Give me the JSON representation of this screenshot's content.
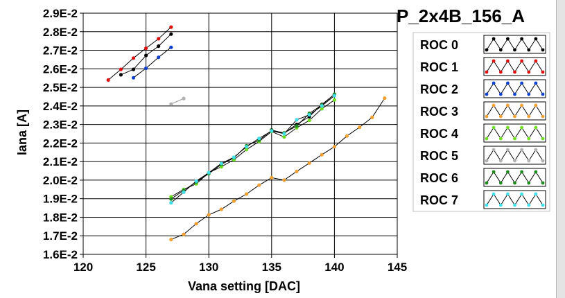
{
  "chart_data": {
    "type": "line",
    "title": "P_2x4B_156_A",
    "xlabel": "Vana setting [DAC]",
    "ylabel": "Iana [A]",
    "xlim": [
      120,
      145
    ],
    "ylim": [
      0.016,
      0.029
    ],
    "xticks": [
      120,
      125,
      130,
      135,
      140,
      145
    ],
    "xtick_labels": [
      "120",
      "125",
      "130",
      "135",
      "140",
      "145"
    ],
    "yticks": [
      0.016,
      0.017,
      0.018,
      0.019,
      0.02,
      0.021,
      0.022,
      0.023,
      0.024,
      0.025,
      0.026,
      0.027,
      0.028,
      0.029
    ],
    "ytick_labels": [
      "1.6E-2",
      "1.7E-2",
      "1.8E-2",
      "1.9E-2",
      "2.0E-2",
      "2.1E-2",
      "2.2E-2",
      "2.3E-2",
      "2.4E-2",
      "2.5E-2",
      "2.6E-2",
      "2.7E-2",
      "2.8E-2",
      "2.9E-2"
    ],
    "grid": true,
    "legend_position": "right",
    "series": [
      {
        "name": "ROC 0",
        "color": "#000000",
        "x": [
          123,
          124,
          125,
          126,
          127,
          135,
          136,
          137,
          138,
          139,
          140
        ],
        "y": [
          0.02568,
          0.02597,
          0.02672,
          0.02722,
          0.02787,
          0.0227,
          0.02253,
          0.023,
          0.02342,
          0.02408,
          0.02462
        ]
      },
      {
        "name": "ROC 1",
        "color": "#e01010",
        "x": [
          122,
          123,
          124,
          125,
          126,
          127
        ],
        "y": [
          0.0254,
          0.02597,
          0.02658,
          0.02711,
          0.02762,
          0.02825
        ]
      },
      {
        "name": "ROC 2",
        "color": "#1040d0",
        "x": [
          124,
          125,
          126,
          127
        ],
        "y": [
          0.02552,
          0.02603,
          0.02662,
          0.02716
        ]
      },
      {
        "name": "ROC 3",
        "color": "#f0a030",
        "x": [
          127,
          128,
          129,
          130,
          131,
          132,
          133,
          134,
          135,
          136,
          137,
          138,
          139,
          140,
          141,
          142,
          143,
          144
        ],
        "y": [
          0.0168,
          0.01708,
          0.01765,
          0.01813,
          0.01843,
          0.01887,
          0.01925,
          0.01973,
          0.02013,
          0.02,
          0.02047,
          0.02092,
          0.02137,
          0.0218,
          0.02238,
          0.02285,
          0.02338,
          0.02442
        ]
      },
      {
        "name": "ROC 4",
        "color": "#70dd20",
        "x": [
          127,
          128,
          129,
          130,
          131,
          132,
          133,
          134,
          135,
          136,
          137,
          138,
          139,
          140
        ],
        "y": [
          0.0191,
          0.0195,
          0.0198,
          0.0204,
          0.02072,
          0.0211,
          0.02165,
          0.02208,
          0.02262,
          0.02233,
          0.02282,
          0.02322,
          0.02385,
          0.02432
        ]
      },
      {
        "name": "ROC 5",
        "color": "#b0b0b0",
        "x": [
          127,
          128
        ],
        "y": [
          0.0241,
          0.0244
        ]
      },
      {
        "name": "ROC 6",
        "color": "#208a20",
        "x": [
          127,
          128,
          129,
          130,
          131,
          132,
          133,
          134,
          135,
          136,
          137,
          138,
          139,
          140
        ],
        "y": [
          0.01898,
          0.01945,
          0.0199,
          0.02035,
          0.02085,
          0.0212,
          0.02185,
          0.02215,
          0.02268,
          0.02255,
          0.02292,
          0.0236,
          0.02405,
          0.02463
        ]
      },
      {
        "name": "ROC 7",
        "color": "#40e0e8",
        "x": [
          127,
          128,
          129,
          130,
          131,
          132,
          133,
          134,
          135,
          136,
          137,
          138,
          139,
          140
        ],
        "y": [
          0.01878,
          0.01935,
          0.01995,
          0.0204,
          0.0209,
          0.02123,
          0.0218,
          0.02225,
          0.02265,
          0.0225,
          0.02325,
          0.02352,
          0.024,
          0.02455
        ]
      }
    ]
  }
}
